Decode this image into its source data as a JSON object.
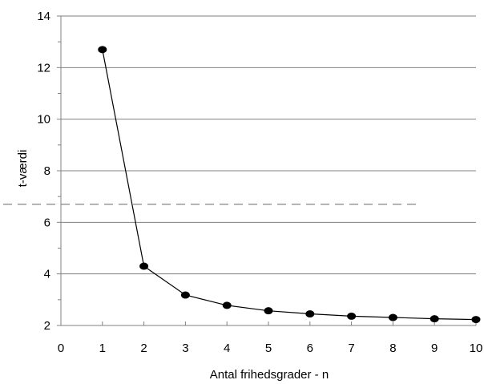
{
  "chart_data": {
    "type": "line",
    "x": [
      1,
      2,
      3,
      4,
      5,
      6,
      7,
      8,
      9,
      10
    ],
    "series": [
      {
        "values": [
          12.7,
          4.3,
          3.18,
          2.78,
          2.57,
          2.45,
          2.36,
          2.31,
          2.26,
          2.23
        ]
      }
    ],
    "title": "",
    "xlabel": "Antal frihedsgrader - n",
    "ylabel": "t-værdi",
    "xlim": [
      0,
      10
    ],
    "ylim": [
      2,
      14
    ],
    "xticks": [
      "0",
      "1",
      "2",
      "3",
      "4",
      "5",
      "6",
      "7",
      "8",
      "9",
      "10"
    ],
    "yticks": [
      "2",
      "4",
      "6",
      "8",
      "10",
      "12",
      "14"
    ],
    "grid": "horizontal",
    "reference_line": {
      "y": 6.7,
      "style": "dashed"
    },
    "colors": {
      "line": "#000000",
      "marker": "#000000",
      "grid": "#808080"
    }
  }
}
